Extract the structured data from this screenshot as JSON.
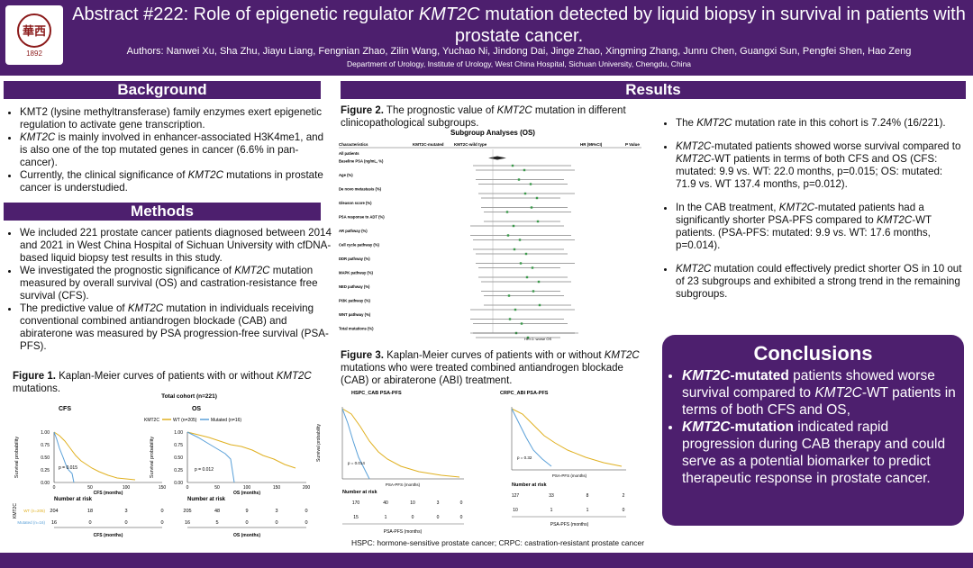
{
  "header": {
    "logo_text": "華西醫院",
    "logo_year": "1892",
    "title_prefix": "Abstract #222: Role of epigenetic regulator ",
    "title_gene": "KMT2C",
    "title_suffix": " mutation detected by liquid biopsy in survival in patients with prostate cancer.",
    "authors": "Authors: Nanwei Xu, Sha Zhu, Jiayu Liang, Fengnian Zhao, Zilin Wang, Yuchao Ni, Jindong Dai, Jinge Zhao, Xingming Zhang, Junru Chen, Guangxi Sun, Pengfei Shen, Hao Zeng",
    "department": "Department of Urology, Institute of Urology, West China Hospital, Sichuan University, Chengdu, China"
  },
  "background": {
    "heading": "Background",
    "items": [
      "KMT2 (lysine methyltransferase) family enzymes exert epigenetic regulation to activate gene transcription.",
      "KMT2C is mainly involved in enhancer-associated H3K4me1, and is also one of the top mutated genes in cancer (6.6% in pan-cancer).",
      "Currently, the clinical significance of KMT2C mutations in prostate cancer is understudied."
    ]
  },
  "methods": {
    "heading": "Methods",
    "items": [
      "We included 221 prostate cancer patients diagnosed between 2014 and 2021 in West China Hospital of Sichuan University with cfDNA-based liquid biopsy test results in this study.",
      "We investigated the prognostic significance of KMT2C mutation measured by overall survival (OS) and castration-resistance free survival (CFS).",
      "The predictive value of KMT2C mutation in individuals receiving conventional combined antiandrogen blockade (CAB) and abiraterone was measured by PSA progression-free survival (PSA-PFS)."
    ]
  },
  "figure1": {
    "caption": "Figure 1. Kaplan-Meier curves of patients with or without KMT2C mutations.",
    "cohort": "Total cohort (n=221)",
    "left_title": "CFS",
    "right_title": "OS",
    "legend_wt": "WT (n=205)",
    "legend_mut": "Mutated (n=16)",
    "left_p": "p = 0.015",
    "right_p": "p = 0.012",
    "ylabel": "Survival probability",
    "left_xlabel": "CFS (months)",
    "right_xlabel": "OS (months)",
    "risk_title": "Number at risk",
    "left_risk_wt": [
      "204",
      "18",
      "3",
      "0"
    ],
    "left_risk_mut": [
      "16",
      "0",
      "0",
      "0"
    ],
    "right_risk_wt": [
      "205",
      "48",
      "9",
      "3",
      "0"
    ],
    "right_risk_mut": [
      "16",
      "5",
      "0",
      "0",
      "0"
    ]
  },
  "results": {
    "heading": "Results",
    "items": [
      "The KMT2C mutation rate in this cohort is 7.24% (16/221).",
      "KMT2C-mutated patients showed worse survival compared to KMT2C-WT patients in terms of both CFS and OS (CFS: mutated: 9.9 vs. WT: 22.0 months, p=0.015; OS: mutated: 71.9 vs. WT 137.4 months, p=0.012).",
      "In the CAB treatment, KMT2C-mutated patients had a significantly shorter PSA-PFS compared to KMT2C-WT patients. (PSA-PFS: mutated: 9.9 vs. WT: 17.6 months, p=0.014).",
      "KMT2C mutation could effectively predict shorter OS in 10 out of 23 subgroups and exhibited a strong trend in the remaining subgroups."
    ]
  },
  "figure2": {
    "caption": "Figure 2. The prognostic value of KMT2C mutation in different clinicopathological subgroups.",
    "plot_title": "Subgroup Analyses (OS)",
    "col_char": "Characteristics",
    "col_mut": "KMT2C-mutated",
    "col_wt": "KMT2C-wild type",
    "col_hr": "HR (95%CI)",
    "col_p": "P Value",
    "axis_note": "HR<1: worse OS",
    "groups": [
      "All patients",
      "Baseline PSA (ng/mL, %)",
      "Age (%)",
      "De novo metastasis (%)",
      "Gleason score (%)",
      "PSA response to ADT (%)",
      "AR pathway (%)",
      "Cell cycle pathway (%)",
      "DDR pathway (%)",
      "MAPK pathway (%)",
      "NED pathway (%)",
      "PI3K pathway (%)",
      "WNT pathway (%)",
      "Total mutations (%)"
    ]
  },
  "figure3": {
    "caption": "Figure 3. Kaplan-Meier curves of patients with or without KMT2C mutations who were treated combined antiandrogen blockade (CAB) or abiraterone (ABI) treatment.",
    "left_title": "HSPC_CAB PSA-PFS",
    "right_title": "CRPC_ABI PSA-PFS",
    "left_p": "p = 0.014",
    "right_p": "p = 0.32",
    "xlabel": "PSA-PFS (months)",
    "risk_title": "Number at risk",
    "left_risk_wt": [
      "170",
      "40",
      "10",
      "3",
      "0"
    ],
    "left_risk_mut": [
      "15",
      "1",
      "0",
      "0",
      "0"
    ],
    "right_risk_wt": [
      "127",
      "33",
      "8",
      "2"
    ],
    "right_risk_mut": [
      "10",
      "1",
      "1",
      "0"
    ],
    "footnote": "HSPC: hormone-sensitive prostate cancer;   CRPC: castration-resistant prostate cancer"
  },
  "conclusions": {
    "heading": "Conclusions",
    "item1_bold": "KMT2C-mutated",
    "item1_rest": " patients showed worse survival compared to KMT2C-WT patients in terms of both CFS and OS,",
    "item2_bold": "KMT2C-mutation",
    "item2_rest": " indicated rapid progression during CAB therapy and could serve as a potential biomarker to predict therapeutic response in prostate cancer."
  },
  "colors": {
    "brand": "#4d1f6e",
    "wt_curve": "#e0b020",
    "mut_curve": "#5aa0d8"
  }
}
